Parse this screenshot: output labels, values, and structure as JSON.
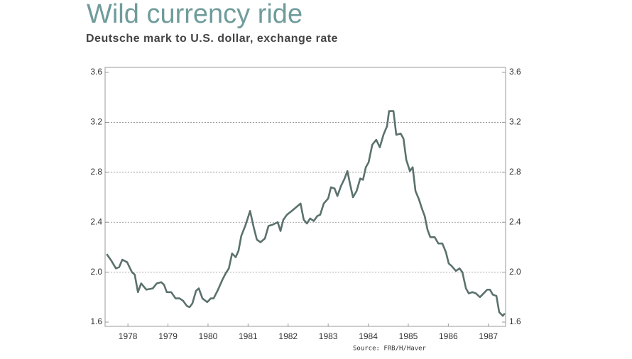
{
  "chart_data": {
    "type": "line",
    "title": "Wild currency ride",
    "subtitle": "Deutsche mark to U.S. dollar, exchange rate",
    "source": "Source: FRB/H/Haver",
    "color": "#5b716d",
    "grid": true,
    "xlim": [
      1977.43,
      1987.43
    ],
    "xticks": [
      1978,
      1979,
      1980,
      1981,
      1982,
      1983,
      1984,
      1985,
      1986,
      1987
    ],
    "ylim": [
      1.566,
      3.64
    ],
    "yticks": [
      {
        "value": 1.6,
        "label": "1.6"
      },
      {
        "value": 2,
        "label": "2.0"
      },
      {
        "value": 2.4,
        "label": "2.4"
      },
      {
        "value": 2.8,
        "label": "2.8"
      },
      {
        "value": 3.2,
        "label": "3.2"
      },
      {
        "value": 3.6,
        "label": "3.6"
      }
    ],
    "y2lim": [
      1.566,
      3.64
    ],
    "y2ticks": [
      {
        "value": 1.6,
        "label": "1.6"
      },
      {
        "value": 2,
        "label": "2.0"
      },
      {
        "value": 2.4,
        "label": "2.4"
      },
      {
        "value": 2.8,
        "label": "2.8"
      },
      {
        "value": 3.2,
        "label": "3.2"
      },
      {
        "value": 3.6,
        "label": "3.6"
      }
    ],
    "x": [
      1977.47,
      1977.59,
      1977.7,
      1977.78,
      1977.86,
      1977.98,
      1978.1,
      1978.17,
      1978.25,
      1978.33,
      1978.46,
      1978.62,
      1978.72,
      1978.83,
      1978.9,
      1978.97,
      1979.08,
      1979.19,
      1979.29,
      1979.38,
      1979.47,
      1979.54,
      1979.61,
      1979.7,
      1979.77,
      1979.86,
      1979.98,
      1980.07,
      1980.14,
      1980.25,
      1980.36,
      1980.44,
      1980.52,
      1980.6,
      1980.69,
      1980.76,
      1980.83,
      1980.94,
      1981.05,
      1981.14,
      1981.22,
      1981.31,
      1981.42,
      1981.51,
      1981.61,
      1981.74,
      1981.81,
      1981.88,
      1981.97,
      1982.09,
      1982.2,
      1982.31,
      1982.39,
      1982.47,
      1982.55,
      1982.64,
      1982.73,
      1982.8,
      1982.89,
      1983.0,
      1983.07,
      1983.16,
      1983.23,
      1983.32,
      1983.41,
      1983.48,
      1983.55,
      1983.62,
      1983.71,
      1983.8,
      1983.87,
      1983.94,
      1984.01,
      1984.1,
      1984.2,
      1984.29,
      1984.38,
      1984.47,
      1984.52,
      1984.63,
      1984.7,
      1984.81,
      1984.88,
      1984.95,
      1985.04,
      1985.11,
      1985.18,
      1985.27,
      1985.34,
      1985.41,
      1985.48,
      1985.55,
      1985.66,
      1985.75,
      1985.85,
      1985.94,
      1986.01,
      1986.08,
      1986.19,
      1986.28,
      1986.35,
      1986.44,
      1986.51,
      1986.6,
      1986.69,
      1986.79,
      1986.88,
      1986.97,
      1987.04,
      1987.11,
      1987.2,
      1987.27,
      1987.36,
      1987.41
    ],
    "values": [
      2.145,
      2.09,
      2.03,
      2.04,
      2.1,
      2.08,
      2.0,
      1.98,
      1.84,
      1.91,
      1.86,
      1.87,
      1.91,
      1.92,
      1.9,
      1.84,
      1.84,
      1.79,
      1.79,
      1.77,
      1.73,
      1.72,
      1.75,
      1.85,
      1.87,
      1.79,
      1.76,
      1.79,
      1.79,
      1.86,
      1.94,
      1.99,
      2.03,
      2.15,
      2.12,
      2.17,
      2.29,
      2.38,
      2.49,
      2.36,
      2.26,
      2.24,
      2.27,
      2.37,
      2.38,
      2.4,
      2.33,
      2.42,
      2.46,
      2.49,
      2.52,
      2.55,
      2.42,
      2.39,
      2.43,
      2.41,
      2.45,
      2.46,
      2.55,
      2.59,
      2.68,
      2.67,
      2.61,
      2.69,
      2.75,
      2.81,
      2.7,
      2.6,
      2.65,
      2.75,
      2.74,
      2.84,
      2.88,
      3.02,
      3.06,
      3.0,
      3.1,
      3.17,
      3.29,
      3.29,
      3.1,
      3.11,
      3.07,
      2.9,
      2.81,
      2.84,
      2.65,
      2.58,
      2.51,
      2.45,
      2.34,
      2.28,
      2.28,
      2.23,
      2.23,
      2.16,
      2.07,
      2.05,
      2.01,
      2.03,
      2.0,
      1.87,
      1.83,
      1.84,
      1.83,
      1.8,
      1.83,
      1.86,
      1.86,
      1.82,
      1.81,
      1.68,
      1.65,
      1.67
    ]
  }
}
